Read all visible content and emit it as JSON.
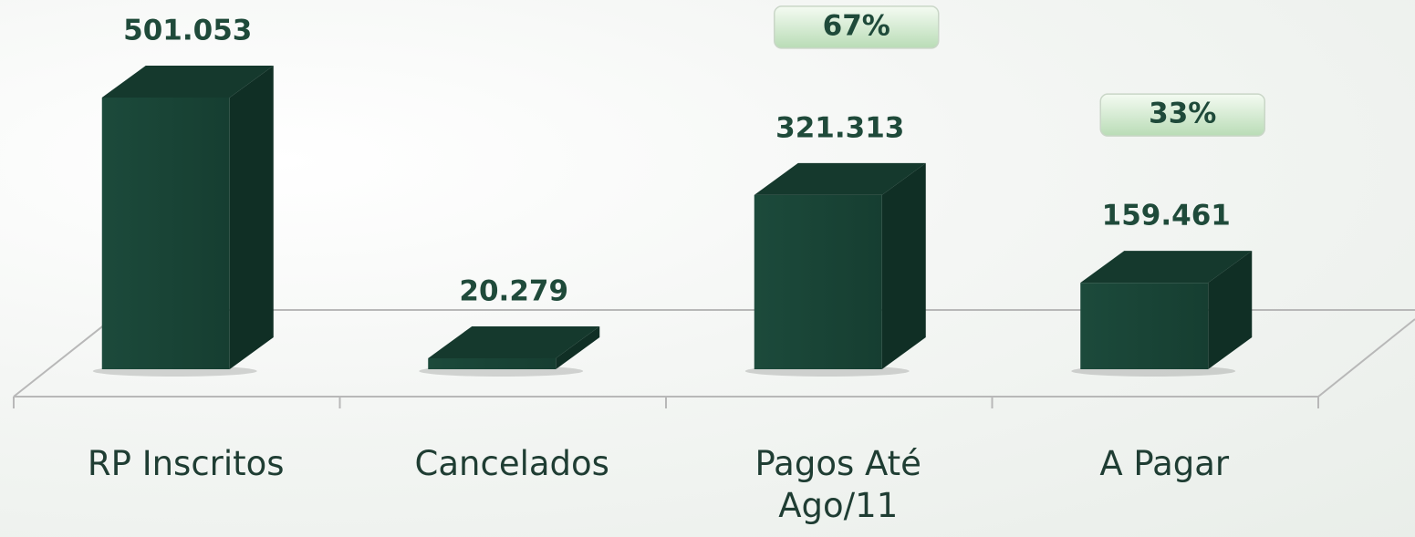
{
  "chart_data": {
    "type": "bar3d",
    "categories": [
      "RP Inscritos",
      "Cancelados",
      "Pagos Até Ago/11",
      "A Pagar"
    ],
    "values": [
      501053,
      20279,
      321313,
      159461
    ],
    "value_labels": [
      "501.053",
      "20.279",
      "321.313",
      "159.461"
    ],
    "percent_labels": [
      null,
      null,
      "67%",
      "33%"
    ],
    "color": "#1a4a3a"
  }
}
